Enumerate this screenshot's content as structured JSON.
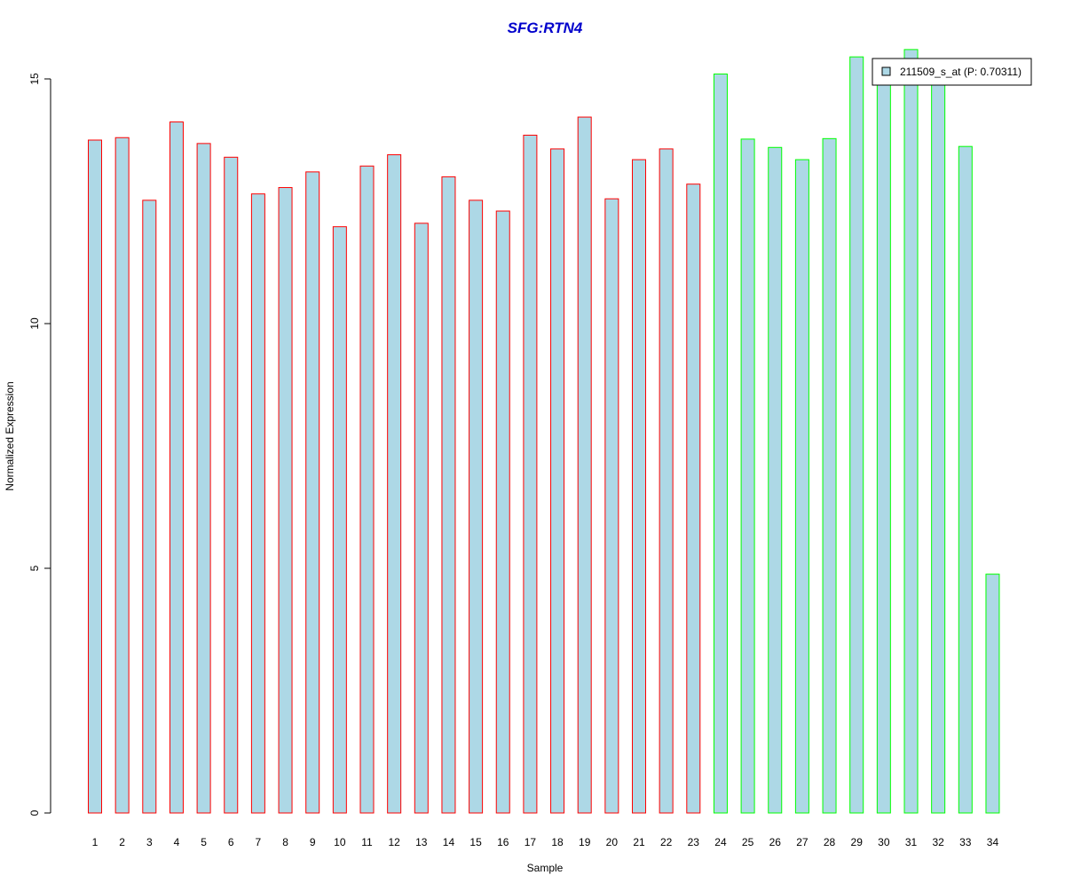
{
  "chart_data": {
    "type": "bar",
    "title": "SFG:RTN4",
    "xlabel": "Sample",
    "ylabel": "Normalized Expression",
    "ylim": [
      0,
      15.6
    ],
    "y_ticks": [
      0,
      5,
      10,
      15
    ],
    "y_tick_labels": [
      "0",
      "5",
      "10",
      "15"
    ],
    "categories": [
      "1",
      "2",
      "3",
      "4",
      "5",
      "6",
      "7",
      "8",
      "9",
      "10",
      "11",
      "12",
      "13",
      "14",
      "15",
      "16",
      "17",
      "18",
      "19",
      "20",
      "21",
      "22",
      "23",
      "24",
      "25",
      "26",
      "27",
      "28",
      "29",
      "30",
      "31",
      "32",
      "33",
      "34"
    ],
    "series": [
      {
        "name": "211509_s_at (P: 0.70311)",
        "values": [
          13.75,
          13.8,
          12.52,
          14.12,
          13.68,
          13.4,
          12.65,
          12.78,
          13.1,
          11.98,
          13.22,
          13.45,
          12.05,
          13.0,
          12.52,
          12.3,
          13.85,
          13.57,
          14.22,
          12.55,
          13.35,
          13.57,
          12.85,
          15.1,
          13.77,
          13.6,
          13.35,
          13.78,
          15.45,
          15.02,
          15.6,
          15.05,
          13.62,
          4.88
        ],
        "fill_color": "#add8e6",
        "group_border_colors": [
          "#ff0000",
          "#ff0000",
          "#ff0000",
          "#ff0000",
          "#ff0000",
          "#ff0000",
          "#ff0000",
          "#ff0000",
          "#ff0000",
          "#ff0000",
          "#ff0000",
          "#ff0000",
          "#ff0000",
          "#ff0000",
          "#ff0000",
          "#ff0000",
          "#ff0000",
          "#ff0000",
          "#ff0000",
          "#ff0000",
          "#ff0000",
          "#ff0000",
          "#ff0000",
          "#00ff00",
          "#00ff00",
          "#00ff00",
          "#00ff00",
          "#00ff00",
          "#00ff00",
          "#00ff00",
          "#00ff00",
          "#00ff00",
          "#00ff00",
          "#00ff00"
        ]
      }
    ],
    "legend": {
      "position": "top-right",
      "label": "211509_s_at (P: 0.70311)"
    },
    "grid": false,
    "colors": {
      "title": "#0000cc",
      "axis": "#000000",
      "legend_border": "#000000"
    }
  }
}
